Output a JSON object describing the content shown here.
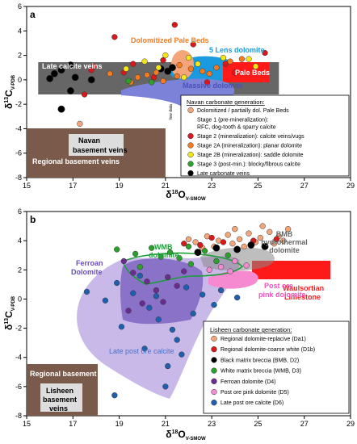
{
  "chart_data": [
    {
      "panel_label": "a",
      "type": "scatter",
      "xlabel": "δ18O V-SMOW",
      "xlabel_main": "δ",
      "xlabel_sup": "18",
      "xlabel_end": "O",
      "xlabel_sub": "V-SMOW",
      "ylabel": "δ13C V-PDB",
      "ylabel_main": "δ",
      "ylabel_sup": "13",
      "ylabel_end": "C",
      "ylabel_sub": "V-PDB",
      "xlim": [
        15,
        29
      ],
      "ylim": [
        -8,
        6
      ],
      "x_ticks": [
        15,
        17,
        19,
        21,
        23,
        25,
        27,
        29
      ],
      "y_ticks": [
        -8,
        -6,
        -4,
        -2,
        0,
        2,
        4,
        6
      ],
      "grid": false,
      "regions": [
        {
          "label": "Late calcite veins",
          "color": "#666666",
          "x": [
            15.5,
            26
          ],
          "y": [
            -0.6,
            2.0
          ]
        },
        {
          "label": "Regional basement veins",
          "color": "#7a5a4a",
          "x": [
            15,
            21
          ],
          "y": [
            -8,
            -4
          ]
        },
        {
          "label": "Pale Beds",
          "color": "#ff1a1a",
          "x": [
            24,
            26
          ],
          "y": [
            0.5,
            2.0
          ]
        },
        {
          "label": "Dolomitized Pale Beds",
          "color": "#f4a67a"
        },
        {
          "label": "5 Lens dolomite",
          "color": "#1a9be0"
        },
        {
          "label": "Massive dolomite",
          "color": "#7c82d8"
        },
        {
          "label": "Navan basement veins",
          "color": "#dddddd"
        }
      ],
      "side_note": "few data",
      "legend": {
        "placement": "bottom-right",
        "title": "Navan carbonate generation:",
        "entries": [
          {
            "label": "Dolomitized / partially dol. Pale Beds",
            "color": "#f4a67a",
            "shape": "circle"
          },
          {
            "label": "Stage 1 (pre-mineralization):",
            "label2": "RFC, dog-tooth & sparry calcite",
            "color": "",
            "shape": "none"
          },
          {
            "label": "Stage 2 (mineralization): calcite veins/vugs",
            "color": "#d7191c",
            "shape": "circle"
          },
          {
            "label": "Stage 2A (mineralization): planar dolomite",
            "color": "#f47b20",
            "shape": "circle"
          },
          {
            "label": "Stage 2B (mineralization): saddle dolomite",
            "color": "#f5e61a",
            "shape": "circle"
          },
          {
            "label": "Stage 3 (post-min.): blocky/fibrous calcite",
            "color": "#2ca02c",
            "shape": "circle"
          },
          {
            "label": "Late carbonate veins",
            "color": "#000000",
            "shape": "circle"
          }
        ]
      },
      "series": [
        {
          "name": "Late carbonate veins",
          "color": "#000000",
          "points": [
            [
              16.0,
              0.1
            ],
            [
              16.2,
              0.5
            ],
            [
              16.5,
              0.8
            ],
            [
              16.9,
              1.2
            ],
            [
              17.1,
              0.2
            ],
            [
              16.9,
              -0.9
            ],
            [
              16.5,
              -2.4
            ],
            [
              20.8,
              0.9
            ],
            [
              21.1,
              0.7
            ],
            [
              21.3,
              1.0
            ],
            [
              17.8,
              0.0
            ]
          ]
        },
        {
          "name": "Stage 2 (mineralization): calcite veins/vugs",
          "color": "#d7191c",
          "points": [
            [
              18.8,
              3.5
            ],
            [
              21.4,
              4.5
            ],
            [
              17.9,
              1.1
            ],
            [
              19.2,
              0.6
            ],
            [
              20.5,
              0.2
            ],
            [
              22.2,
              2.9
            ],
            [
              23.6,
              1.3
            ],
            [
              17.5,
              -1.2
            ],
            [
              17.8,
              0.8
            ],
            [
              19.6,
              1.3
            ],
            [
              20.9,
              1.6
            ],
            [
              22.8,
              -0.2
            ],
            [
              24.0,
              0.6
            ],
            [
              25.3,
              2.2
            ]
          ]
        },
        {
          "name": "Stage 2A (mineralization): planar dolomite",
          "color": "#f47b20",
          "points": [
            [
              19.8,
              0.2
            ],
            [
              20.2,
              0.4
            ],
            [
              20.6,
              0.6
            ],
            [
              21.6,
              1.2
            ],
            [
              22.1,
              0.9
            ],
            [
              22.6,
              0.7
            ],
            [
              23.2,
              1.0
            ],
            [
              23.8,
              1.5
            ],
            [
              24.3,
              1.7
            ],
            [
              19.5,
              -0.2
            ],
            [
              20.9,
              -0.1
            ],
            [
              21.5,
              0.3
            ],
            [
              22.9,
              0.5
            ],
            [
              18.6,
              0.5
            ]
          ]
        },
        {
          "name": "Stage 2B (mineralization): saddle dolomite",
          "color": "#f5e61a",
          "points": [
            [
              20.1,
              1.5
            ],
            [
              21.0,
              2.0
            ],
            [
              22.0,
              1.8
            ],
            [
              22.4,
              1.3
            ],
            [
              23.5,
              1.8
            ],
            [
              24.6,
              1.7
            ],
            [
              20.7,
              1.0
            ],
            [
              19.3,
              0.9
            ],
            [
              24.9,
              1.1
            ],
            [
              21.8,
              0.2
            ]
          ]
        },
        {
          "name": "Stage 3 (post-min.): blocky/fibrous calcite",
          "color": "#2ca02c",
          "points": [
            [
              19.4,
              -0.1
            ],
            [
              20.4,
              -0.2
            ]
          ]
        },
        {
          "name": "Dolomitized / partially dol. Pale Beds",
          "color": "#f4a67a",
          "points": [
            [
              17.3,
              -3.6
            ]
          ]
        }
      ]
    },
    {
      "panel_label": "b",
      "type": "scatter",
      "xlabel": "δ18O V-SMOW",
      "xlabel_main": "δ",
      "xlabel_sup": "18",
      "xlabel_end": "O",
      "xlabel_sub": "V-SMOW",
      "ylabel": "δ13C V-PDB",
      "ylabel_main": "δ",
      "ylabel_sup": "13",
      "ylabel_end": "C",
      "ylabel_sub": "V-PDB",
      "xlim": [
        15,
        29
      ],
      "ylim": [
        -8,
        6
      ],
      "x_ticks": [
        15,
        17,
        19,
        21,
        23,
        25,
        27,
        29
      ],
      "y_ticks": [
        -8,
        -6,
        -4,
        -2,
        0,
        2,
        4,
        6
      ],
      "grid": false,
      "regions": [
        {
          "label": "Late post ore calcite",
          "color": "#c9b9e8"
        },
        {
          "label": "Ferroan Dolomite",
          "color": "#8a72c8"
        },
        {
          "label": "WMB dolomite",
          "color": "#1e9e3a"
        },
        {
          "label": "Waulsortian Limestone",
          "color": "#ff1a1a",
          "x": [
            25,
            28.5
          ],
          "y": [
            3.3,
            4.6
          ]
        },
        {
          "label": "Post ore pink dolomite",
          "color": "#f58ad0"
        },
        {
          "label": "BMB hydrothermal dolomite",
          "color": "#777777"
        },
        {
          "label": "Regional basement veins",
          "color": "#7a5a4a",
          "x": [
            15,
            21
          ],
          "y": [
            -8,
            -4
          ]
        },
        {
          "label": "Lisheen basement veins",
          "color": "#dddddd"
        }
      ],
      "legend": {
        "placement": "bottom-right",
        "title": "Lisheen carbonate generation:",
        "entries": [
          {
            "label": "Regional dolomite-replacive (Da1)",
            "color": "#f4a67a",
            "shape": "circle"
          },
          {
            "label": "Regional dolomite-coarse white (D1b)",
            "color": "#d7191c",
            "shape": "circle"
          },
          {
            "label": "Black matrix breccia (BMB, D2)",
            "color": "#000000",
            "shape": "circle"
          },
          {
            "label": "White matrix breccia (WMB, D3)",
            "color": "#2ca02c",
            "shape": "circle"
          },
          {
            "label": "Ferroan dolomite (D4)",
            "color": "#6a2c91",
            "shape": "circle"
          },
          {
            "label": "Post ore pink dolomite (D5)",
            "color": "#f58ad0",
            "shape": "circle"
          },
          {
            "label": "Late post ore calcite (D6)",
            "color": "#1f5fb0",
            "shape": "circle"
          }
        ]
      },
      "series": [
        {
          "name": "Regional dolomite-replacive (Da1)",
          "color": "#f4a67a",
          "points": [
            [
              22.3,
              3.9
            ],
            [
              22.8,
              4.3
            ],
            [
              23.3,
              4.0
            ],
            [
              23.7,
              4.4
            ],
            [
              24.2,
              4.1
            ],
            [
              24.6,
              4.5
            ],
            [
              25.1,
              4.2
            ],
            [
              25.5,
              4.6
            ],
            [
              25.9,
              4.3
            ],
            [
              26.3,
              4.8
            ],
            [
              22.6,
              3.5
            ],
            [
              23.1,
              3.6
            ],
            [
              23.9,
              3.8
            ],
            [
              24.4,
              3.6
            ],
            [
              24.9,
              3.9
            ],
            [
              25.7,
              3.8
            ],
            [
              26.1,
              4.0
            ],
            [
              22.0,
              4.1
            ],
            [
              24.0,
              4.8
            ],
            [
              25.2,
              5.0
            ]
          ]
        },
        {
          "name": "Regional dolomite-coarse white (D1b)",
          "color": "#d7191c",
          "points": [
            [
              22.5,
              3.7
            ],
            [
              23.5,
              3.9
            ],
            [
              24.8,
              4.0
            ],
            [
              25.8,
              4.1
            ],
            [
              21.8,
              3.8
            ],
            [
              23.0,
              4.2
            ]
          ]
        },
        {
          "name": "Black matrix breccia (BMB, D2)",
          "color": "#000000",
          "points": [
            [
              23.2,
              3.5
            ],
            [
              24.1,
              3.4
            ],
            [
              24.7,
              3.7
            ],
            [
              25.3,
              3.6
            ],
            [
              22.4,
              3.2
            ]
          ]
        },
        {
          "name": "White matrix breccia (WMB, D3)",
          "color": "#2ca02c",
          "points": [
            [
              18.9,
              3.4
            ],
            [
              19.7,
              3.1
            ],
            [
              20.4,
              3.5
            ],
            [
              21.2,
              3.2
            ],
            [
              21.6,
              2.8
            ],
            [
              22.1,
              2.4
            ],
            [
              22.7,
              3.3
            ],
            [
              23.2,
              2.6
            ],
            [
              23.7,
              3.0
            ],
            [
              20.8,
              2.9
            ],
            [
              19.9,
              2.2
            ],
            [
              22.0,
              3.6
            ]
          ]
        },
        {
          "name": "Ferroan dolomite (D4)",
          "color": "#6a2c91",
          "points": [
            [
              19.2,
              2.6
            ],
            [
              19.6,
              1.8
            ],
            [
              20.2,
              1.2
            ],
            [
              20.6,
              0.6
            ],
            [
              21.1,
              1.5
            ],
            [
              21.5,
              0.9
            ],
            [
              20.0,
              -0.3
            ],
            [
              19.4,
              -0.8
            ],
            [
              20.9,
              -0.2
            ],
            [
              21.8,
              1.9
            ]
          ]
        },
        {
          "name": "Post ore pink dolomite (D5)",
          "color": "#f58ad0",
          "points": [
            [
              23.4,
              2.2
            ],
            [
              24.0,
              2.6
            ],
            [
              24.5,
              2.3
            ],
            [
              23.8,
              1.9
            ],
            [
              22.9,
              2.0
            ]
          ]
        },
        {
          "name": "Late post ore calcite (D6)",
          "color": "#1f5fb0",
          "points": [
            [
              17.6,
              0.5
            ],
            [
              18.9,
              1.1
            ],
            [
              19.6,
              0.4
            ],
            [
              20.3,
              -0.6
            ],
            [
              20.7,
              -1.4
            ],
            [
              21.3,
              -2.1
            ],
            [
              20.1,
              -3.4
            ],
            [
              21.1,
              -4.6
            ],
            [
              21.5,
              -2.8
            ],
            [
              22.2,
              -1.0
            ],
            [
              22.6,
              0.3
            ],
            [
              21.9,
              0.8
            ],
            [
              19.1,
              -1.9
            ],
            [
              18.4,
              -0.1
            ],
            [
              23.4,
              0.6
            ],
            [
              24.1,
              0.1
            ],
            [
              21.0,
              -6.0
            ],
            [
              21.7,
              -3.8
            ],
            [
              18.8,
              -6.6
            ],
            [
              20.6,
              0.2
            ],
            [
              23.1,
              -0.4
            ],
            [
              19.9,
              1.6
            ]
          ]
        }
      ]
    }
  ]
}
